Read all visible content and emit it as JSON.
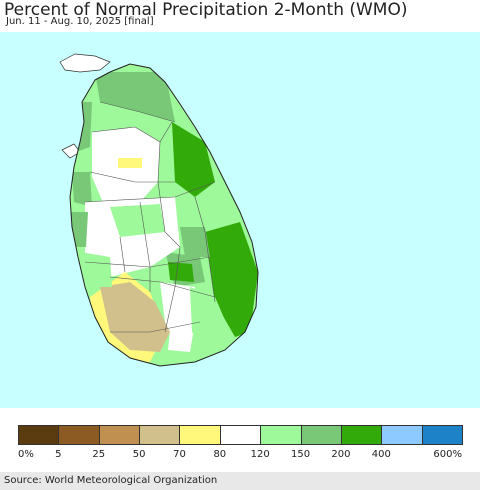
{
  "header": {
    "title": "Percent of Normal Precipitation 2-Month (WMO)",
    "subtitle": "Jun. 11 - Aug. 10, 2025 [final]"
  },
  "legend": {
    "colors": [
      "#5a3c10",
      "#8c5a23",
      "#c09050",
      "#d2c08c",
      "#fff87a",
      "#ffffff",
      "#9ef99a",
      "#78c878",
      "#32aa0a",
      "#8ccaff",
      "#1e82c8"
    ],
    "tick_labels": [
      "0%",
      "5",
      "25",
      "50",
      "70",
      "80",
      "120",
      "150",
      "200",
      "400",
      "600%"
    ]
  },
  "map": {
    "ocean_color": "#c8ffff",
    "region": "Sri Lanka"
  },
  "footer": {
    "source": "Source: World Meteorological Organization"
  }
}
